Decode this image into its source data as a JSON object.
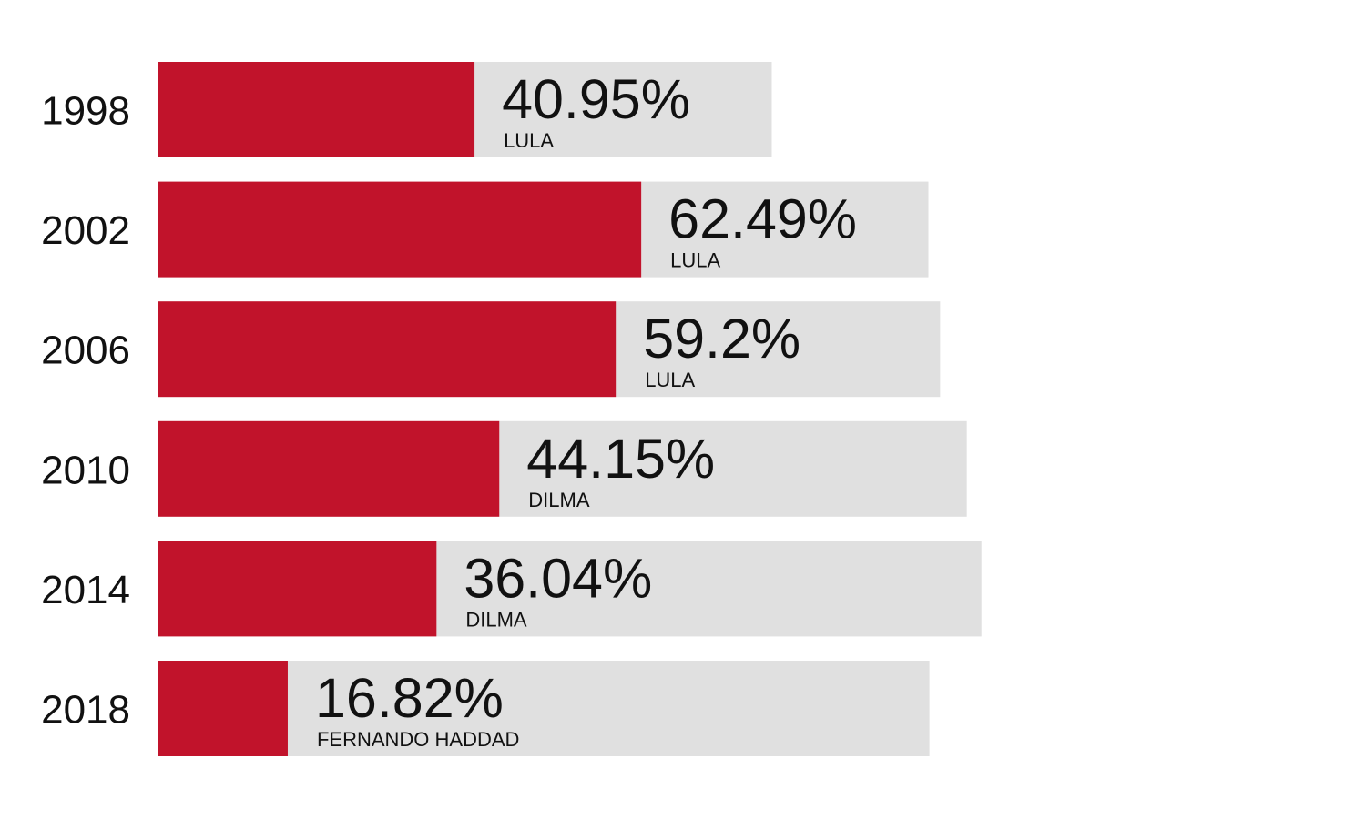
{
  "chart_data": {
    "type": "bar",
    "orientation": "horizontal",
    "stacked": true,
    "categories": [
      "1998",
      "2002",
      "2006",
      "2010",
      "2014",
      "2018"
    ],
    "series": [
      {
        "role": "pt_vote_share",
        "values": [
          40.95,
          62.49,
          59.2,
          44.15,
          36.04,
          16.82
        ],
        "color": "#C1132B"
      },
      {
        "role": "remainder",
        "values": [
          38.4,
          37.1,
          41.9,
          60.4,
          70.4,
          82.9
        ],
        "color": "#E0E0E0"
      }
    ],
    "value_labels": [
      "40.95%",
      "62.49%",
      "59.2%",
      "44.15%",
      "36.04%",
      "16.82%"
    ],
    "candidate_labels": [
      "LULA",
      "LULA",
      "LULA",
      "DILMA",
      "DILMA",
      "FERNANDO HADDAD"
    ],
    "title": "",
    "xlabel": "",
    "ylabel": "",
    "grid": false,
    "legend": "none"
  }
}
